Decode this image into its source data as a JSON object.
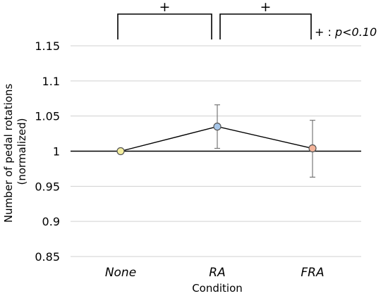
{
  "chart_data": {
    "type": "line",
    "title": "",
    "xlabel": "Condition",
    "ylabel_line1": "Number of pedal rotations",
    "ylabel_line2": "(normalized)",
    "categories": [
      "None",
      "RA",
      "FRA"
    ],
    "series": [
      {
        "values": [
          1.0,
          1.035,
          1.004
        ],
        "error": [
          [
            1.0,
            1.0
          ],
          [
            1.004,
            1.066
          ],
          [
            0.963,
            1.044
          ]
        ],
        "marker_colors": [
          "#f5ef9f",
          "#a7c7ea",
          "#f4b49a"
        ]
      }
    ],
    "ylim": [
      0.85,
      1.15
    ],
    "yticks": [
      0.85,
      0.9,
      0.95,
      1,
      1.05,
      1.1,
      1.15
    ],
    "ytick_labels": [
      "0.85",
      "0.9",
      "0.95",
      "1",
      "1.05",
      "1.1",
      "1.15"
    ],
    "reference_line": 1,
    "grid": true,
    "significance": [
      {
        "from": "None",
        "to": "RA",
        "label": "+"
      },
      {
        "from": "RA",
        "to": "FRA",
        "label": "+"
      }
    ],
    "significance_legend_symbol": "+",
    "significance_legend_sep": " : ",
    "significance_legend_text": "p<0.10"
  }
}
